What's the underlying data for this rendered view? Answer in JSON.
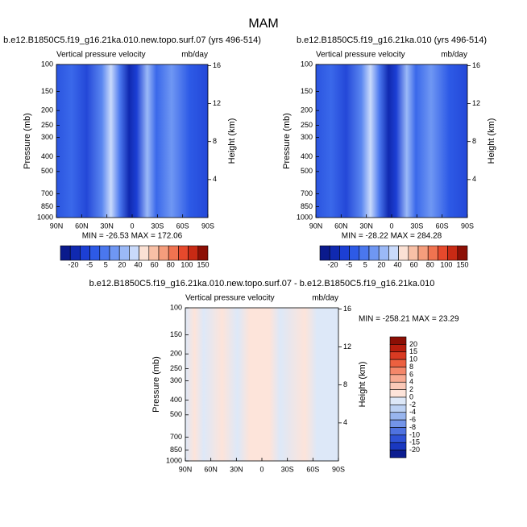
{
  "title": "MAM",
  "panels": [
    {
      "title": "b.e12.B1850C5.f19_g16.21ka.010.new.topo.surf.07 (yrs 496-514)",
      "left": "Vertical pressure velocity",
      "right": "mb/day",
      "min_max": "MIN = -26.53   MAX = 172.06"
    },
    {
      "title": "b.e12.B1850C5.f19_g16.21ka.010 (yrs 496-514)",
      "left": "Vertical pressure velocity",
      "right": "mb/day",
      "min_max": "MIN = -28.22   MAX = 284.28"
    },
    {
      "title": "b.e12.B1850C5.f19_g16.21ka.010.new.topo.surf.07 - b.e12.B1850C5.f19_g16.21ka.010",
      "left": "Vertical pressure velocity",
      "right": "mb/day",
      "min_max": "MIN = -258.21   MAX =  23.29"
    }
  ],
  "y_axis": {
    "title": "Pressure (mb)",
    "ticks": [
      100,
      150,
      200,
      250,
      300,
      400,
      500,
      700,
      850,
      1000
    ]
  },
  "y2_axis": {
    "title": "Height (km)",
    "ticks": [
      4,
      8,
      12,
      16
    ]
  },
  "x_axis": {
    "labels": [
      "90N",
      "60N",
      "30N",
      "0",
      "30S",
      "60S",
      "90S"
    ]
  },
  "colorbar_top": {
    "labels": [
      -20,
      -5,
      5,
      20,
      40,
      60,
      80,
      100,
      150
    ],
    "colors": [
      "#0a1a8c",
      "#1029b0",
      "#1c3fd4",
      "#2d5ae6",
      "#4a77ee",
      "#6f97f3",
      "#9bb9f7",
      "#c9dafb",
      "#fbe1d4",
      "#f8c0a6",
      "#f59d7c",
      "#f07350",
      "#e6492c",
      "#c82a14",
      "#8c0f05"
    ]
  },
  "colorbar_diff": {
    "labels": [
      20,
      15,
      10,
      8,
      6,
      4,
      2,
      0,
      -2,
      -4,
      -6,
      -8,
      -10,
      -15,
      -20
    ],
    "colors": [
      "#8c0f05",
      "#b81e0e",
      "#d93a22",
      "#ec6040",
      "#f4876a",
      "#f8aa92",
      "#fbc9b8",
      "#fde4da",
      "#dde8f8",
      "#bcd1f3",
      "#98b5ee",
      "#7394e8",
      "#4f72e0",
      "#2f52d6",
      "#1a38c0",
      "#0c1d90"
    ]
  }
}
